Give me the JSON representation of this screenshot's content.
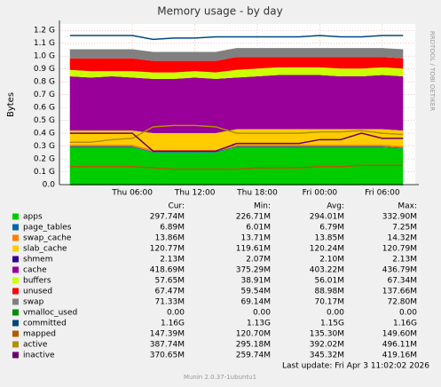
{
  "chart_data": {
    "type": "area",
    "stacked": true,
    "grid": true,
    "title": "Memory usage - by day",
    "y_label": "Bytes",
    "side_note": "RRDTOOL / TOBI OETIKER",
    "columns": [
      "Cur:",
      "Min:",
      "Avg:",
      "Max:"
    ],
    "last_update": "Last update: Fri Apr  3 11:02:02 2026",
    "footer": "Munin 2.0.37-1ubuntu1",
    "xlim": [
      "Wed 23:00",
      "Fri 09:10"
    ],
    "xticks": [
      "Thu 06:00",
      "Thu 12:00",
      "Thu 18:00",
      "Fri 00:00",
      "Fri 06:00"
    ],
    "x": [
      "Thu 00:00",
      "Thu 02:00",
      "Thu 04:00",
      "Thu 06:00",
      "Thu 08:00",
      "Thu 10:00",
      "Thu 12:00",
      "Thu 14:00",
      "Thu 16:00",
      "Thu 18:00",
      "Thu 20:00",
      "Thu 22:00",
      "Fri 00:00",
      "Fri 02:00",
      "Fri 04:00",
      "Fri 06:00",
      "Fri 08:00"
    ],
    "ylim": [
      0,
      1.25
    ],
    "yticks": [
      {
        "value": 0,
        "label": "0.0"
      },
      {
        "value": 0.1,
        "label": "0.1 G"
      },
      {
        "value": 0.2,
        "label": "0.2 G"
      },
      {
        "value": 0.3,
        "label": "0.3 G"
      },
      {
        "value": 0.4,
        "label": "0.4 G"
      },
      {
        "value": 0.5,
        "label": "0.5 G"
      },
      {
        "value": 0.6,
        "label": "0.6 G"
      },
      {
        "value": 0.7,
        "label": "0.7 G"
      },
      {
        "value": 0.8,
        "label": "0.8 G"
      },
      {
        "value": 0.9,
        "label": "0.9 G"
      },
      {
        "value": 1.0,
        "label": "1.0 G"
      },
      {
        "value": 1.1,
        "label": "1.1 G"
      },
      {
        "value": 1.2,
        "label": "1.2 G"
      }
    ],
    "series": [
      {
        "name": "apps",
        "color": "#00cc00",
        "kind": "area",
        "cur": "297.74M",
        "min": "226.71M",
        "avg": "294.01M",
        "max": "332.90M",
        "values": [
          0.29,
          0.29,
          0.29,
          0.29,
          0.25,
          0.25,
          0.25,
          0.25,
          0.29,
          0.29,
          0.29,
          0.29,
          0.29,
          0.29,
          0.29,
          0.29,
          0.28
        ]
      },
      {
        "name": "page_tables",
        "color": "#0066b3",
        "kind": "area",
        "cur": "6.89M",
        "min": "6.01M",
        "avg": "6.79M",
        "max": "7.25M",
        "values": [
          0.0068,
          0.0068,
          0.0068,
          0.0068,
          0.0068,
          0.0068,
          0.0068,
          0.0068,
          0.0068,
          0.0068,
          0.0068,
          0.0068,
          0.0068,
          0.0068,
          0.0068,
          0.0068,
          0.0068
        ]
      },
      {
        "name": "swap_cache",
        "color": "#ff8000",
        "kind": "area",
        "cur": "13.86M",
        "min": "13.71M",
        "avg": "13.85M",
        "max": "14.32M",
        "values": [
          0.014,
          0.014,
          0.014,
          0.014,
          0.014,
          0.014,
          0.014,
          0.014,
          0.014,
          0.014,
          0.014,
          0.014,
          0.014,
          0.014,
          0.014,
          0.014,
          0.014
        ]
      },
      {
        "name": "slab_cache",
        "color": "#ffcc00",
        "kind": "area",
        "cur": "120.77M",
        "min": "119.61M",
        "avg": "120.24M",
        "max": "120.79M",
        "values": [
          0.11,
          0.11,
          0.11,
          0.11,
          0.13,
          0.13,
          0.13,
          0.13,
          0.12,
          0.12,
          0.12,
          0.12,
          0.12,
          0.12,
          0.12,
          0.12,
          0.12
        ]
      },
      {
        "name": "shmem",
        "color": "#330099",
        "kind": "area",
        "cur": "2.13M",
        "min": "2.07M",
        "avg": "2.10M",
        "max": "2.13M",
        "values": [
          0.002,
          0.002,
          0.002,
          0.002,
          0.002,
          0.002,
          0.002,
          0.002,
          0.002,
          0.002,
          0.002,
          0.002,
          0.002,
          0.002,
          0.002,
          0.002,
          0.002
        ]
      },
      {
        "name": "cache",
        "color": "#990099",
        "kind": "area",
        "cur": "418.69M",
        "min": "375.29M",
        "avg": "403.22M",
        "max": "436.79M",
        "values": [
          0.42,
          0.41,
          0.42,
          0.41,
          0.42,
          0.42,
          0.43,
          0.42,
          0.4,
          0.41,
          0.42,
          0.42,
          0.42,
          0.41,
          0.41,
          0.42,
          0.42
        ]
      },
      {
        "name": "buffers",
        "color": "#ccff00",
        "kind": "area",
        "cur": "57.65M",
        "min": "38.91M",
        "avg": "56.01M",
        "max": "67.34M",
        "values": [
          0.05,
          0.05,
          0.04,
          0.05,
          0.05,
          0.05,
          0.05,
          0.05,
          0.06,
          0.06,
          0.06,
          0.06,
          0.06,
          0.06,
          0.06,
          0.06,
          0.06
        ]
      },
      {
        "name": "unused",
        "color": "#ff0000",
        "kind": "area",
        "cur": "67.47M",
        "min": "59.54M",
        "avg": "88.98M",
        "max": "137.66M",
        "values": [
          0.09,
          0.1,
          0.1,
          0.1,
          0.09,
          0.09,
          0.08,
          0.09,
          0.1,
          0.09,
          0.08,
          0.08,
          0.08,
          0.09,
          0.09,
          0.08,
          0.08
        ]
      },
      {
        "name": "swap",
        "color": "#808080",
        "kind": "area",
        "cur": "71.33M",
        "min": "69.14M",
        "avg": "70.17M",
        "max": "72.80M",
        "values": [
          0.07,
          0.07,
          0.07,
          0.07,
          0.07,
          0.07,
          0.07,
          0.07,
          0.07,
          0.07,
          0.07,
          0.07,
          0.07,
          0.07,
          0.07,
          0.07,
          0.07
        ]
      },
      {
        "name": "vmalloc_used",
        "color": "#008f00",
        "kind": "line",
        "cur": "0.00",
        "min": "0.00",
        "avg": "0.00",
        "max": "0.00",
        "values": [
          0,
          0,
          0,
          0,
          0,
          0,
          0,
          0,
          0,
          0,
          0,
          0,
          0,
          0,
          0,
          0,
          0
        ]
      },
      {
        "name": "committed",
        "color": "#00487d",
        "kind": "line",
        "cur": "1.16G",
        "min": "1.13G",
        "avg": "1.15G",
        "max": "1.16G",
        "values": [
          1.16,
          1.16,
          1.16,
          1.16,
          1.13,
          1.14,
          1.14,
          1.15,
          1.15,
          1.15,
          1.15,
          1.15,
          1.16,
          1.15,
          1.15,
          1.16,
          1.16
        ]
      },
      {
        "name": "mapped",
        "color": "#b35a00",
        "kind": "line",
        "cur": "147.39M",
        "min": "120.70M",
        "avg": "135.30M",
        "max": "149.60M",
        "values": [
          0.14,
          0.14,
          0.14,
          0.14,
          0.13,
          0.12,
          0.12,
          0.12,
          0.12,
          0.13,
          0.13,
          0.13,
          0.14,
          0.14,
          0.15,
          0.15,
          0.15
        ]
      },
      {
        "name": "active",
        "color": "#b38f00",
        "kind": "line",
        "cur": "387.74M",
        "min": "295.18M",
        "avg": "392.02M",
        "max": "496.11M",
        "values": [
          0.33,
          0.33,
          0.35,
          0.36,
          0.45,
          0.46,
          0.46,
          0.45,
          0.4,
          0.4,
          0.4,
          0.4,
          0.41,
          0.41,
          0.42,
          0.4,
          0.39
        ]
      },
      {
        "name": "inactive",
        "color": "#6b006b",
        "kind": "line",
        "cur": "370.65M",
        "min": "259.74M",
        "avg": "345.32M",
        "max": "419.16M",
        "values": [
          0.4,
          0.4,
          0.4,
          0.4,
          0.26,
          0.26,
          0.26,
          0.26,
          0.32,
          0.32,
          0.32,
          0.32,
          0.35,
          0.35,
          0.4,
          0.36,
          0.36
        ]
      }
    ]
  }
}
